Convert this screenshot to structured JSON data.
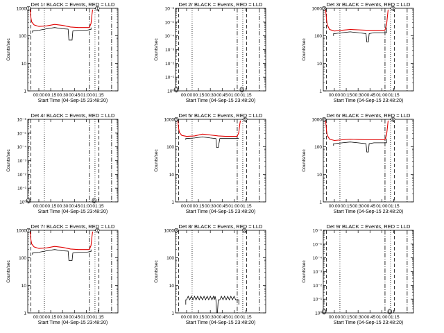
{
  "figure": {
    "grid": false,
    "legend": "none"
  },
  "colors": {
    "events": "#000000",
    "lld": "#e00000"
  },
  "chart_data": [
    {
      "type": "line",
      "title": "Det 1r BLACK = Events, RED = LLD",
      "xlabel": "Start Time (04-Sep-15 23:48:20)",
      "ylabel": "Counts/sec",
      "yscale": "log",
      "ylim": [
        1,
        1000
      ],
      "y_tick_labels": [
        "1",
        "10",
        "100",
        "1000"
      ],
      "x_tick_labels": [
        "00:00",
        "00:15",
        "00:30",
        "00:45",
        "01:00",
        "01:15"
      ],
      "x_minutes": [
        0,
        15,
        30,
        45,
        60,
        75
      ],
      "xlim": [
        -14,
        100
      ],
      "vlines_minutes": {
        "dashed": [
          -10,
          76
        ],
        "dotted": [
          7,
          71
        ],
        "dashdot": [
          64,
          92
        ]
      },
      "detector_markers": [
        {
          "x": -13,
          "y": 1000,
          "text": "1"
        },
        {
          "x": 74,
          "y": 1000,
          "text": "1"
        }
      ],
      "series": [
        {
          "name": "BLACK = Events",
          "color": "#000000",
          "x": [
            -8,
            -8,
            -7,
            0,
            10,
            20,
            30,
            37,
            38,
            40,
            42,
            43,
            50,
            60,
            66,
            66
          ],
          "y": [
            130,
            150,
            150,
            160,
            180,
            200,
            180,
            175,
            70,
            70,
            70,
            150,
            160,
            160,
            170,
            200
          ]
        },
        {
          "name": "RED = LLD",
          "color": "#e00000",
          "x": [
            -11,
            -10,
            -9,
            -6,
            0,
            10,
            20,
            30,
            40,
            50,
            60,
            64,
            66,
            67,
            68
          ],
          "y": [
            900,
            450,
            320,
            250,
            220,
            230,
            260,
            240,
            210,
            200,
            200,
            200,
            280,
            550,
            900
          ]
        }
      ]
    },
    {
      "type": "line",
      "title": "Det 2r BLACK = Events, RED = LLD",
      "xlabel": "Start Time (04-Sep-15 23:48:20)",
      "ylabel": "Counts/sec",
      "yscale": "log",
      "ylim": [
        1,
        1e-06
      ],
      "y_tick_labels": [
        "10⁰",
        "10⁻¹",
        "10⁻²",
        "10⁻³",
        "10⁻⁴",
        "10⁻⁵",
        "10⁻⁶"
      ],
      "x_tick_labels": [
        "00:00",
        "00:15",
        "00:30",
        "00:45",
        "01:00",
        "01:15"
      ],
      "x_minutes": [
        0,
        15,
        30,
        45,
        60,
        75
      ],
      "xlim": [
        -14,
        100
      ],
      "vlines_minutes": {
        "dashed": [
          -10,
          76
        ],
        "dotted": [
          7,
          71
        ],
        "dashdot": [
          64,
          92
        ]
      },
      "detector_markers": [
        {
          "x": -13,
          "y": 0.9,
          "text": "0"
        },
        {
          "x": -13,
          "y": 0.75,
          "text": "0"
        },
        {
          "x": 70,
          "y": 0.9,
          "text": "0"
        },
        {
          "x": 70,
          "y": 0.75,
          "text": "0"
        }
      ],
      "series": []
    },
    {
      "type": "line",
      "title": "Det 3r BLACK = Events, RED = LLD",
      "xlabel": "Start Time (04-Sep-15 23:48:20)",
      "ylabel": "Counts/sec",
      "yscale": "log",
      "ylim": [
        1,
        1000
      ],
      "y_tick_labels": [
        "1",
        "10",
        "100",
        "1000"
      ],
      "x_tick_labels": [
        "00:00",
        "00:15",
        "00:30",
        "00:45",
        "01:00",
        "01:15"
      ],
      "x_minutes": [
        0,
        15,
        30,
        45,
        60,
        75
      ],
      "xlim": [
        -14,
        100
      ],
      "vlines_minutes": {
        "dashed": [
          -10,
          76
        ],
        "dotted": [
          7,
          71
        ],
        "dashdot": [
          64,
          92
        ]
      },
      "detector_markers": [
        {
          "x": -13,
          "y": 1000,
          "text": "3"
        },
        {
          "x": 74,
          "y": 1000,
          "text": "3"
        }
      ],
      "series": [
        {
          "name": "BLACK = Events",
          "color": "#000000",
          "x": [
            -1,
            -1,
            0,
            10,
            20,
            30,
            40,
            41,
            42,
            43,
            44,
            50,
            60,
            66,
            66
          ],
          "y": [
            100,
            120,
            120,
            130,
            140,
            130,
            120,
            60,
            60,
            60,
            120,
            130,
            130,
            130,
            200
          ]
        },
        {
          "name": "RED = LLD",
          "color": "#e00000",
          "x": [
            -11,
            -10,
            -9,
            -6,
            0,
            10,
            20,
            30,
            40,
            50,
            60,
            64,
            66,
            67,
            68
          ],
          "y": [
            900,
            400,
            250,
            170,
            150,
            160,
            170,
            165,
            160,
            160,
            160,
            160,
            250,
            500,
            900
          ]
        }
      ]
    },
    {
      "type": "line",
      "title": "Det 4r BLACK = Events, RED = LLD",
      "xlabel": "Start Time (04-Sep-15 23:48:20)",
      "ylabel": "Counts/sec",
      "yscale": "log",
      "ylim": [
        1,
        1e-06
      ],
      "y_tick_labels": [
        "10⁰",
        "10⁻¹",
        "10⁻²",
        "10⁻³",
        "10⁻⁴",
        "10⁻⁵",
        "10⁻⁶"
      ],
      "x_tick_labels": [
        "00:00",
        "00:15",
        "00:30",
        "00:45",
        "01:00",
        "01:15"
      ],
      "x_minutes": [
        0,
        15,
        30,
        45,
        60,
        75
      ],
      "xlim": [
        -14,
        100
      ],
      "vlines_minutes": {
        "dashed": [
          -10,
          76
        ],
        "dotted": [
          7,
          71
        ],
        "dashdot": [
          64,
          92
        ]
      },
      "detector_markers": [
        {
          "x": -13,
          "y": 0.9,
          "text": "0"
        },
        {
          "x": -13,
          "y": 0.75,
          "text": "0"
        },
        {
          "x": 70,
          "y": 0.9,
          "text": "0"
        },
        {
          "x": 70,
          "y": 0.75,
          "text": "0"
        }
      ],
      "series": []
    },
    {
      "type": "line",
      "title": "Det 5r BLACK = Events, RED = LLD",
      "xlabel": "Start Time (04-Sep-15 23:48:20)",
      "ylabel": "Counts/sec",
      "yscale": "log",
      "ylim": [
        1,
        1000
      ],
      "y_tick_labels": [
        "1",
        "10",
        "100",
        "1000"
      ],
      "x_tick_labels": [
        "00:00",
        "00:15",
        "00:30",
        "00:45",
        "01:00",
        "01:15"
      ],
      "x_minutes": [
        0,
        15,
        30,
        45,
        60,
        75
      ],
      "xlim": [
        -14,
        100
      ],
      "vlines_minutes": {
        "dashed": [
          -10,
          76
        ],
        "dotted": [
          7,
          71
        ],
        "dashdot": [
          64,
          92
        ]
      },
      "detector_markers": [
        {
          "x": -13,
          "y": 1000,
          "text": "5"
        },
        {
          "x": 74,
          "y": 1000,
          "text": "5"
        }
      ],
      "series": [
        {
          "name": "BLACK = Events",
          "color": "#000000",
          "x": [
            -1,
            -1,
            0,
            10,
            20,
            30,
            37,
            38,
            40,
            42,
            50,
            60,
            66,
            66
          ],
          "y": [
            180,
            200,
            200,
            210,
            230,
            210,
            200,
            95,
            95,
            200,
            200,
            200,
            200,
            200
          ]
        },
        {
          "name": "RED = LLD",
          "color": "#e00000",
          "x": [
            -11,
            -10,
            -9,
            -6,
            0,
            10,
            20,
            30,
            40,
            50,
            60,
            64,
            66,
            67,
            68
          ],
          "y": [
            900,
            450,
            330,
            260,
            240,
            250,
            290,
            270,
            250,
            240,
            240,
            240,
            330,
            600,
            900
          ]
        }
      ]
    },
    {
      "type": "line",
      "title": "Det 6r BLACK = Events, RED = LLD",
      "xlabel": "Start Time (04-Sep-15 23:48:20)",
      "ylabel": "Counts/sec",
      "yscale": "log",
      "ylim": [
        1,
        1000
      ],
      "y_tick_labels": [
        "1",
        "10",
        "100",
        "1000"
      ],
      "x_tick_labels": [
        "00:00",
        "00:15",
        "00:30",
        "00:45",
        "01:00",
        "01:15"
      ],
      "x_minutes": [
        0,
        15,
        30,
        45,
        60,
        75
      ],
      "xlim": [
        -14,
        100
      ],
      "vlines_minutes": {
        "dashed": [
          -10,
          76
        ],
        "dotted": [
          7,
          71
        ],
        "dashdot": [
          64,
          92
        ]
      },
      "detector_markers": [
        {
          "x": -13,
          "y": 1000,
          "text": "6"
        },
        {
          "x": 74,
          "y": 1000,
          "text": "6"
        }
      ],
      "series": [
        {
          "name": "BLACK = Events",
          "color": "#000000",
          "x": [
            -1,
            -1,
            0,
            10,
            20,
            30,
            40,
            41,
            42,
            43,
            44,
            50,
            60,
            66,
            66
          ],
          "y": [
            110,
            130,
            130,
            140,
            150,
            140,
            130,
            65,
            65,
            65,
            130,
            140,
            140,
            140,
            200
          ]
        },
        {
          "name": "RED = LLD",
          "color": "#e00000",
          "x": [
            -11,
            -10,
            -9,
            -6,
            0,
            10,
            20,
            30,
            40,
            50,
            60,
            64,
            66,
            67,
            68
          ],
          "y": [
            900,
            400,
            260,
            190,
            170,
            180,
            190,
            185,
            180,
            180,
            180,
            180,
            270,
            500,
            900
          ]
        }
      ]
    },
    {
      "type": "line",
      "title": "Det 7r BLACK = Events, RED = LLD",
      "xlabel": "Start Time (04-Sep-15 23:48:20)",
      "ylabel": "Counts/sec",
      "yscale": "log",
      "ylim": [
        1,
        1000
      ],
      "y_tick_labels": [
        "1",
        "10",
        "100",
        "1000"
      ],
      "x_tick_labels": [
        "00:00",
        "00:15",
        "00:30",
        "00:45",
        "01:00",
        "01:15"
      ],
      "x_minutes": [
        0,
        15,
        30,
        45,
        60,
        75
      ],
      "xlim": [
        -14,
        100
      ],
      "vlines_minutes": {
        "dashed": [
          -10,
          76
        ],
        "dotted": [
          7,
          71
        ],
        "dashdot": [
          64,
          92
        ]
      },
      "detector_markers": [
        {
          "x": -13,
          "y": 1000,
          "text": "7"
        },
        {
          "x": 74,
          "y": 1000,
          "text": "7"
        }
      ],
      "series": [
        {
          "name": "BLACK = Events",
          "color": "#000000",
          "x": [
            -8,
            -8,
            -7,
            0,
            10,
            20,
            30,
            37,
            38,
            40,
            42,
            43,
            50,
            60,
            66,
            66
          ],
          "y": [
            130,
            150,
            150,
            160,
            180,
            200,
            180,
            175,
            80,
            80,
            80,
            150,
            160,
            160,
            170,
            200
          ]
        },
        {
          "name": "RED = LLD",
          "color": "#e00000",
          "x": [
            -11,
            -10,
            -9,
            -6,
            0,
            10,
            20,
            30,
            40,
            50,
            60,
            64,
            66,
            67,
            68
          ],
          "y": [
            900,
            450,
            320,
            250,
            220,
            230,
            260,
            240,
            210,
            200,
            200,
            200,
            280,
            550,
            900
          ]
        }
      ]
    },
    {
      "type": "line",
      "title": "Det 8r BLACK = Events, RED = LLD",
      "xlabel": "Start Time (04-Sep-15 23:48:20)",
      "ylabel": "Counts/sec",
      "yscale": "log",
      "ylim": [
        1,
        1000
      ],
      "y_tick_labels": [
        "1",
        "10",
        "100",
        "1000"
      ],
      "x_tick_labels": [
        "00:00",
        "00:15",
        "00:30",
        "00:45",
        "01:00",
        "01:15"
      ],
      "x_minutes": [
        0,
        15,
        30,
        45,
        60,
        75
      ],
      "xlim": [
        -14,
        100
      ],
      "vlines_minutes": {
        "dashed": [
          -10,
          76
        ],
        "dotted": [
          7,
          71
        ],
        "dashdot": [
          64,
          92
        ]
      },
      "detector_markers": [
        {
          "x": -13,
          "y": 1000,
          "text": "8"
        },
        {
          "x": 73,
          "y": 1000,
          "text": "8"
        }
      ],
      "series": [
        {
          "name": "BLACK = Events",
          "color": "#000000",
          "x": [
            -1,
            -1,
            0,
            2,
            4,
            6,
            8,
            10,
            12,
            14,
            16,
            18,
            20,
            22,
            24,
            26,
            28,
            30,
            32,
            34,
            35,
            36,
            37,
            38,
            39,
            40,
            42,
            44,
            46,
            48,
            50,
            52,
            54,
            56,
            58,
            60,
            62,
            64,
            66,
            66
          ],
          "y": [
            2,
            3,
            3,
            4,
            3,
            4,
            3,
            4,
            3,
            4,
            3,
            4,
            3,
            4,
            3,
            4,
            3,
            4,
            3,
            4,
            3,
            4,
            3,
            1,
            1,
            3,
            3,
            4,
            3,
            4,
            3,
            4,
            3,
            4,
            3,
            4,
            3,
            3,
            3,
            2
          ]
        }
      ]
    },
    {
      "type": "line",
      "title": "Det 9r BLACK = Events, RED = LLD",
      "xlabel": "Start Time (04-Sep-15 23:48:20)",
      "ylabel": "Counts/sec",
      "yscale": "log",
      "ylim": [
        1,
        1e-06
      ],
      "y_tick_labels": [
        "10⁰",
        "10⁻¹",
        "10⁻²",
        "10⁻³",
        "10⁻⁴",
        "10⁻⁵",
        "10⁻⁶"
      ],
      "x_tick_labels": [
        "00:00",
        "00:15",
        "00:30",
        "00:45",
        "01:00",
        "01:15"
      ],
      "x_minutes": [
        0,
        15,
        30,
        45,
        60,
        75
      ],
      "xlim": [
        -14,
        100
      ],
      "vlines_minutes": {
        "dashed": [
          -10,
          76
        ],
        "dotted": [
          7,
          71
        ],
        "dashdot": [
          64,
          92
        ]
      },
      "detector_markers": [
        {
          "x": -13,
          "y": 0.9,
          "text": "0"
        },
        {
          "x": -13,
          "y": 0.75,
          "text": "0"
        },
        {
          "x": 70,
          "y": 0.9,
          "text": "0"
        },
        {
          "x": 70,
          "y": 0.75,
          "text": "0"
        }
      ],
      "series": []
    }
  ]
}
